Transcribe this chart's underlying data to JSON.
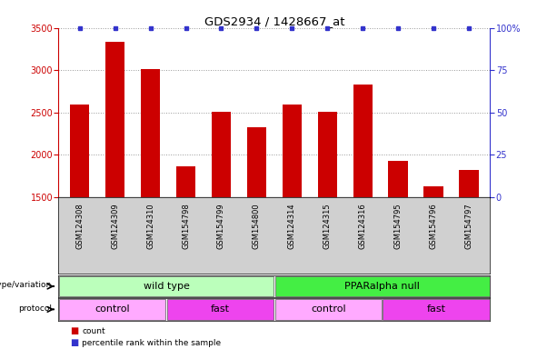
{
  "title": "GDS2934 / 1428667_at",
  "samples": [
    "GSM124308",
    "GSM124309",
    "GSM124310",
    "GSM154798",
    "GSM154799",
    "GSM154800",
    "GSM124314",
    "GSM124315",
    "GSM124316",
    "GSM154795",
    "GSM154796",
    "GSM154797"
  ],
  "counts": [
    2600,
    3340,
    3010,
    1870,
    2510,
    2330,
    2600,
    2510,
    2830,
    1930,
    1630,
    1820
  ],
  "percentile_ranks": [
    100,
    100,
    100,
    100,
    100,
    100,
    100,
    100,
    100,
    100,
    100,
    100
  ],
  "ylim_left": [
    1500,
    3500
  ],
  "ylim_right": [
    0,
    100
  ],
  "yticks_left": [
    1500,
    2000,
    2500,
    3000,
    3500
  ],
  "yticks_right": [
    0,
    25,
    50,
    75,
    100
  ],
  "ytick_labels_right": [
    "0",
    "25",
    "50",
    "75",
    "100%"
  ],
  "bar_color": "#cc0000",
  "dot_color": "#3333cc",
  "grid_color": "#999999",
  "bg_color": "#ffffff",
  "genotype_groups": [
    {
      "label": "wild type",
      "start": 0,
      "end": 5,
      "color": "#bbffbb"
    },
    {
      "label": "PPARalpha null",
      "start": 6,
      "end": 11,
      "color": "#44ee44"
    }
  ],
  "protocol_groups": [
    {
      "label": "control",
      "start": 0,
      "end": 2,
      "color": "#ffaaff"
    },
    {
      "label": "fast",
      "start": 3,
      "end": 5,
      "color": "#ee44ee"
    },
    {
      "label": "control",
      "start": 6,
      "end": 8,
      "color": "#ffaaff"
    },
    {
      "label": "fast",
      "start": 9,
      "end": 11,
      "color": "#ee44ee"
    }
  ],
  "legend_count_color": "#cc0000",
  "legend_pct_color": "#3333cc",
  "label_fontsize": 7,
  "tick_fontsize": 7,
  "bar_label_fontsize": 6,
  "group_fontsize": 8
}
